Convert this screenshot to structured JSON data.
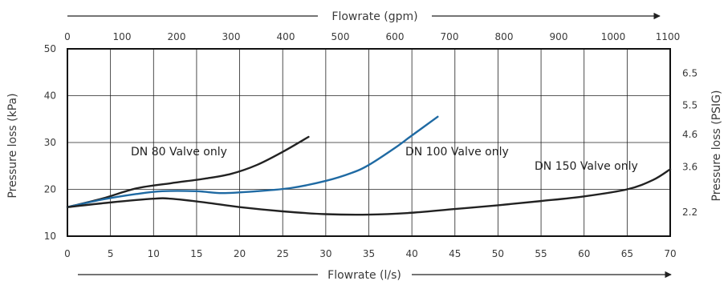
{
  "chart_data": {
    "type": "line",
    "xlabel": "Flowrate (l/s)",
    "x_top_label": "Flowrate (gpm)",
    "ylabel": "Pressure loss (kPa)",
    "y_right_label": "Pressure loss (PSIG)",
    "xlim": [
      0,
      70
    ],
    "ylim": [
      10,
      50
    ],
    "x_ticks": [
      "0",
      "5",
      "10",
      "15",
      "20",
      "25",
      "30",
      "35",
      "40",
      "45",
      "50",
      "55",
      "60",
      "65",
      "70"
    ],
    "y_ticks": [
      "10",
      "20",
      "30",
      "40",
      "50"
    ],
    "top_ticks": [
      "0",
      "100",
      "200",
      "300",
      "400",
      "500",
      "600",
      "700",
      "800",
      "900",
      "1000",
      "1100"
    ],
    "right_ticks": [
      "2.2",
      "3.6",
      "4.6",
      "5.5",
      "6.5"
    ],
    "grid": true,
    "series": [
      {
        "name": "DN 80 Valve only",
        "color": "#222222",
        "x": [
          0,
          4,
          8,
          12,
          16,
          19,
          22,
          25,
          28
        ],
        "y": [
          16.2,
          18.0,
          20.2,
          21.3,
          22.3,
          23.3,
          25.2,
          28.0,
          31.2
        ]
      },
      {
        "name": "DN 100  Valve only",
        "color": "#1f6aa3",
        "x": [
          0,
          4,
          8,
          11,
          15,
          18,
          22,
          26,
          30,
          33,
          35,
          38,
          40,
          43
        ],
        "y": [
          16.2,
          17.8,
          19.0,
          19.6,
          19.6,
          19.2,
          19.6,
          20.3,
          21.8,
          23.5,
          25.2,
          28.8,
          31.5,
          35.5
        ]
      },
      {
        "name": "DN 150  Valve only",
        "color": "#222222",
        "x": [
          0,
          5,
          10,
          12,
          16,
          20,
          25,
          30,
          35,
          40,
          45,
          50,
          55,
          60,
          65,
          68,
          70
        ],
        "y": [
          16.2,
          17.2,
          18.0,
          18.0,
          17.2,
          16.2,
          15.3,
          14.7,
          14.6,
          15.0,
          15.8,
          16.6,
          17.5,
          18.5,
          20.0,
          22.0,
          24.3
        ]
      }
    ]
  }
}
